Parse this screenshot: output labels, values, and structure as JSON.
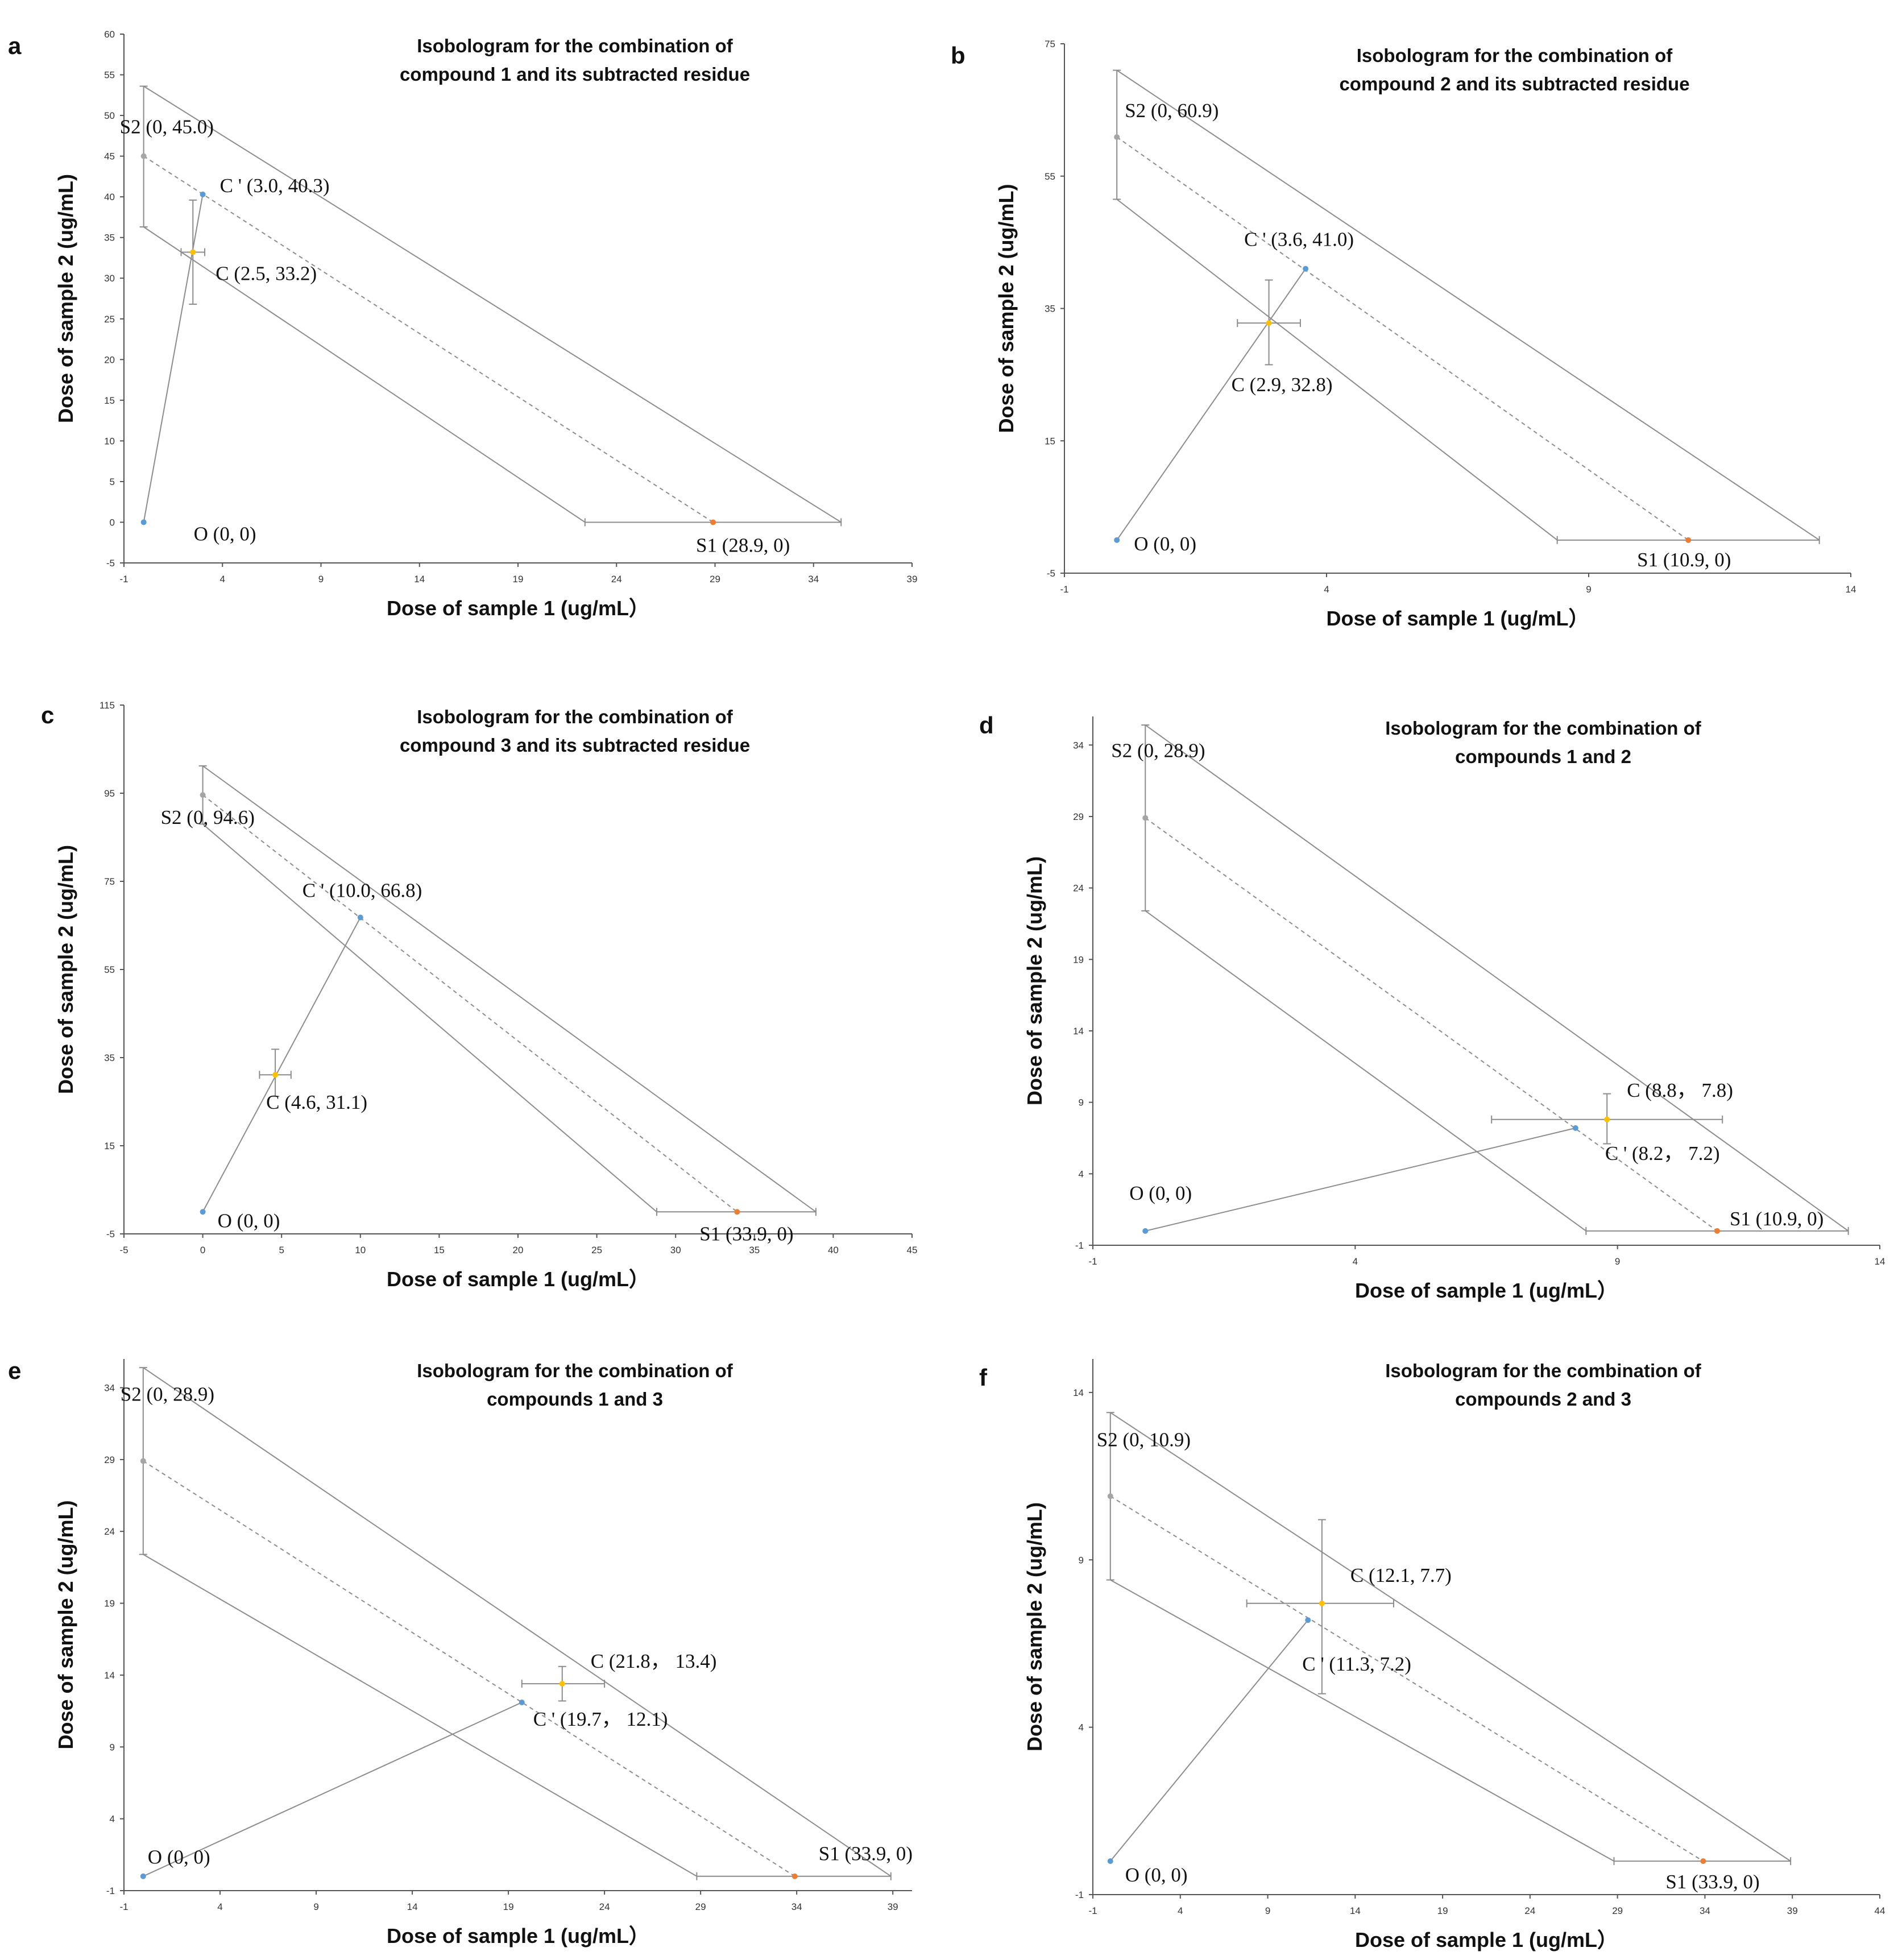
{
  "colors": {
    "line": "#8c8c8c",
    "axis": "#555555",
    "point_origin": "#5b9bd5",
    "point_cprime": "#5b9bd5",
    "point_c": "#ffc000",
    "point_s1": "#ed7d31",
    "point_s2": "#a5a5a5"
  },
  "chart_data": [
    {
      "panel": "a",
      "type": "scatter",
      "title": [
        "Isobologram for the combination of",
        "compound 1 and its subtracted residue"
      ],
      "xlabel": "Dose of sample 1 (ug/mL）",
      "ylabel": "Dose of sample 2 (ug/mL)",
      "xlim": [
        -1,
        39
      ],
      "ylim": [
        -5,
        60
      ],
      "xticks": [
        "-1",
        "4",
        "9",
        "14",
        "19",
        "24",
        "29",
        "34",
        "39"
      ],
      "yticks": [
        "-5",
        "0",
        "5",
        "10",
        "15",
        "20",
        "25",
        "30",
        "35",
        "40",
        "45",
        "50",
        "55",
        "60"
      ],
      "S1": {
        "x": 28.9,
        "y": 0,
        "xerr": [
          22.4,
          35.4
        ],
        "label": "S1 (28.9, 0)"
      },
      "S2": {
        "x": 0,
        "y": 45.0,
        "yerr": [
          36.3,
          53.6
        ],
        "label": "S2 (0, 45.0)"
      },
      "C": {
        "x": 2.5,
        "y": 33.2,
        "xerr": [
          1.9,
          3.1
        ],
        "yerr": [
          26.8,
          39.6
        ],
        "label": "C (2.5, 33.2)"
      },
      "Cprime": {
        "x": 3.0,
        "y": 40.3,
        "label": "C ' (3.0, 40.3)"
      },
      "O": {
        "x": 0,
        "y": 0,
        "label": "O (0, 0)"
      }
    },
    {
      "panel": "b",
      "type": "scatter",
      "title": [
        "Isobologram for the combination of",
        "compound 2 and its subtracted residue"
      ],
      "xlabel": "Dose of sample 1 (ug/mL）",
      "ylabel": "Dose of sample 2 (ug/mL)",
      "xlim": [
        -1,
        14
      ],
      "ylim": [
        -5,
        75
      ],
      "xticks": [
        "-1",
        "4",
        "9",
        "14"
      ],
      "yticks": [
        "-5",
        "15",
        "35",
        "55",
        "75"
      ],
      "S1": {
        "x": 10.9,
        "y": 0,
        "xerr": [
          8.4,
          13.4
        ],
        "label": "S1 (10.9, 0)"
      },
      "S2": {
        "x": 0,
        "y": 60.9,
        "yerr": [
          51.5,
          71.0
        ],
        "label": "S2 (0, 60.9)"
      },
      "C": {
        "x": 2.9,
        "y": 32.8,
        "xerr": [
          2.3,
          3.5
        ],
        "yerr": [
          26.5,
          39.3
        ],
        "label": "C (2.9, 32.8)"
      },
      "Cprime": {
        "x": 3.6,
        "y": 41.0,
        "label": "C ' (3.6, 41.0)"
      },
      "O": {
        "x": 0,
        "y": 0,
        "label": "O (0, 0)"
      }
    },
    {
      "panel": "c",
      "type": "scatter",
      "title": [
        "Isobologram for the combination of",
        "compound 3 and its subtracted residue"
      ],
      "xlabel": "Dose of sample 1 (ug/mL）",
      "ylabel": "Dose of sample 2 (ug/mL)",
      "xlim": [
        -5,
        45
      ],
      "ylim": [
        -5,
        115
      ],
      "xticks": [
        "-5",
        "0",
        "5",
        "10",
        "15",
        "20",
        "25",
        "30",
        "35",
        "40",
        "45"
      ],
      "yticks": [
        "-5",
        "15",
        "35",
        "55",
        "75",
        "95",
        "115"
      ],
      "S1": {
        "x": 33.9,
        "y": 0,
        "xerr": [
          28.8,
          38.9
        ],
        "label": "S1 (33.9, 0)"
      },
      "S2": {
        "x": 0,
        "y": 94.6,
        "yerr": [
          88.0,
          101.2
        ],
        "label": "S2 (0, 94.6)"
      },
      "C": {
        "x": 4.6,
        "y": 31.1,
        "xerr": [
          3.6,
          5.6
        ],
        "yerr": [
          26.2,
          36.9
        ],
        "label": "C (4.6, 31.1)"
      },
      "Cprime": {
        "x": 10.0,
        "y": 66.8,
        "label": "C ' (10.0, 66.8)"
      },
      "O": {
        "x": 0,
        "y": 0,
        "label": "O (0, 0)"
      }
    },
    {
      "panel": "d",
      "type": "scatter",
      "title": [
        "Isobologram for the combination of",
        "compounds 1 and 2"
      ],
      "xlabel": "Dose of sample 1 (ug/mL）",
      "ylabel": "Dose of sample 2 (ug/mL)",
      "xlim": [
        -1,
        14
      ],
      "ylim": [
        -1,
        36
      ],
      "xticks": [
        "-1",
        "4",
        "9",
        "14"
      ],
      "yticks": [
        "-1",
        "4",
        "9",
        "14",
        "19",
        "24",
        "29",
        "34"
      ],
      "S1": {
        "x": 10.9,
        "y": 0,
        "xerr": [
          8.4,
          13.4
        ],
        "label": "S1 (10.9, 0)"
      },
      "S2": {
        "x": 0,
        "y": 28.9,
        "yerr": [
          22.4,
          35.4
        ],
        "label": "S2 (0, 28.9)"
      },
      "C": {
        "x": 8.8,
        "y": 7.8,
        "xerr": [
          6.6,
          11.0
        ],
        "yerr": [
          6.1,
          9.6
        ],
        "label": "C (8.8， 7.8)"
      },
      "Cprime": {
        "x": 8.2,
        "y": 7.2,
        "label": "C ' (8.2， 7.2)"
      },
      "O": {
        "x": 0,
        "y": 0,
        "label": "O (0, 0)"
      }
    },
    {
      "panel": "e",
      "type": "scatter",
      "title": [
        "Isobologram for the combination of",
        "compounds 1 and 3"
      ],
      "xlabel": "Dose of sample 1 (ug/mL）",
      "ylabel": "Dose of sample 2 (ug/mL)",
      "xlim": [
        -1,
        40
      ],
      "ylim": [
        -1,
        36
      ],
      "xticks": [
        "-1",
        "4",
        "9",
        "14",
        "19",
        "24",
        "29",
        "34",
        "39"
      ],
      "yticks": [
        "-1",
        "4",
        "9",
        "14",
        "19",
        "24",
        "29",
        "34"
      ],
      "S1": {
        "x": 33.9,
        "y": 0,
        "xerr": [
          28.8,
          38.9
        ],
        "label": "S1 (33.9, 0)"
      },
      "S2": {
        "x": 0,
        "y": 28.9,
        "yerr": [
          22.4,
          35.4
        ],
        "label": "S2 (0, 28.9)"
      },
      "C": {
        "x": 21.8,
        "y": 13.4,
        "xerr": [
          19.7,
          24.0
        ],
        "yerr": [
          12.2,
          14.6
        ],
        "label": "C (21.8， 13.4)"
      },
      "Cprime": {
        "x": 19.7,
        "y": 12.1,
        "label": "C ' (19.7， 12.1)"
      },
      "O": {
        "x": 0,
        "y": 0,
        "label": "O (0, 0)"
      }
    },
    {
      "panel": "f",
      "type": "scatter",
      "title": [
        "Isobologram for the combination of",
        "compounds 2 and 3"
      ],
      "xlabel": "Dose of sample 1 (ug/mL）",
      "ylabel": "Dose of sample 2 (ug/mL)",
      "xlim": [
        -1,
        44
      ],
      "ylim": [
        -1,
        15
      ],
      "xticks": [
        "-1",
        "4",
        "9",
        "14",
        "19",
        "24",
        "29",
        "34",
        "39",
        "44"
      ],
      "yticks": [
        "-1",
        "4",
        "9",
        "14"
      ],
      "S1": {
        "x": 33.9,
        "y": 0,
        "xerr": [
          28.8,
          38.9
        ],
        "label": "S1 (33.9, 0)"
      },
      "S2": {
        "x": 0,
        "y": 10.9,
        "yerr": [
          8.4,
          13.4
        ],
        "label": "S2 (0, 10.9)"
      },
      "C": {
        "x": 12.1,
        "y": 7.7,
        "xerr": [
          7.8,
          16.2
        ],
        "yerr": [
          5.0,
          10.2
        ],
        "label": "C (12.1, 7.7)"
      },
      "Cprime": {
        "x": 11.3,
        "y": 7.2,
        "label": "C ' (11.3, 7.2)"
      },
      "O": {
        "x": 0,
        "y": 0,
        "label": "O (0, 0)"
      }
    }
  ]
}
